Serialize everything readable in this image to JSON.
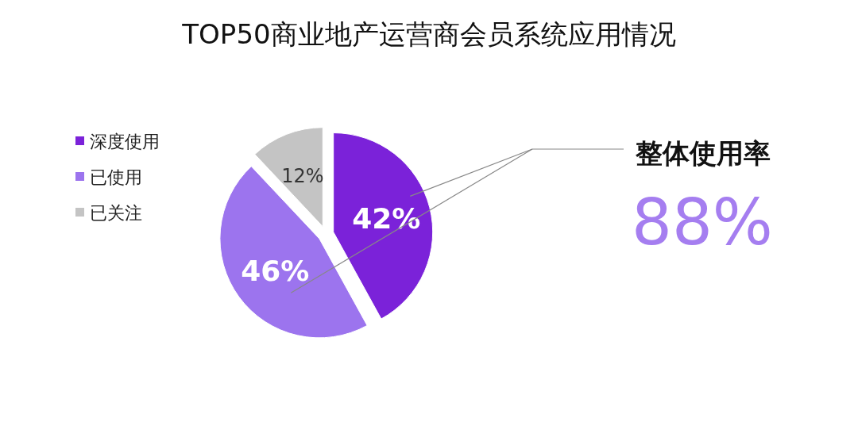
{
  "chart_data": {
    "type": "pie",
    "title": "TOP50商业地产运营商会员系统应用情况",
    "categories": [
      "深度使用",
      "已使用",
      "已关注"
    ],
    "values": [
      42,
      46,
      12
    ],
    "colors": [
      "#7b22d9",
      "#9c74ee",
      "#c4c4c4"
    ],
    "value_labels": [
      "42%",
      "46%",
      "12%"
    ],
    "legend": "left",
    "annotations": [
      "整体使用率",
      "88%"
    ]
  }
}
